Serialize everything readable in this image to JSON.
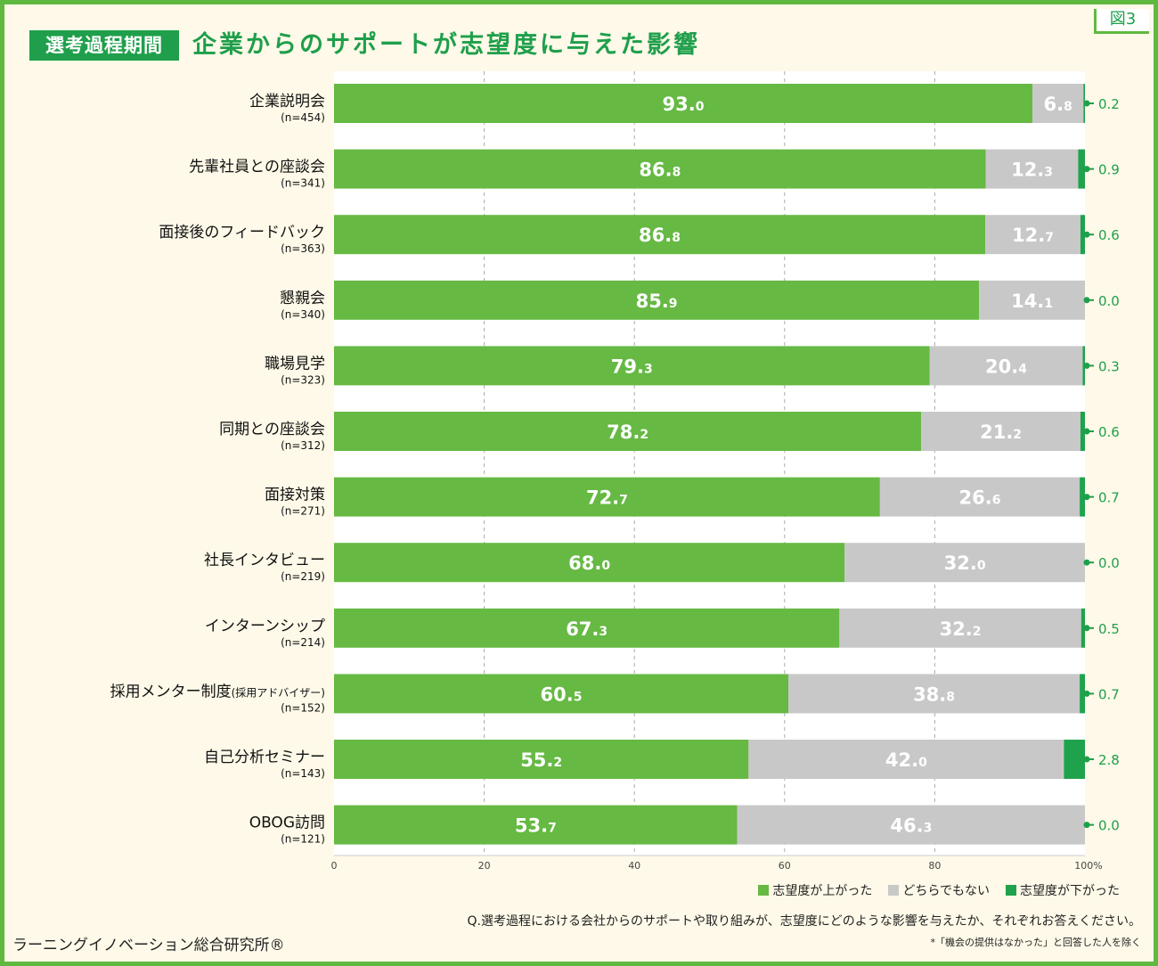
{
  "header": {
    "badge": "選考過程期間",
    "title": "企業からのサポートが志望度に与えた影響",
    "figure_no": "図3"
  },
  "colors": {
    "up": "#66b943",
    "neutral": "#c8c8c8",
    "down": "#1fa24c",
    "label_green": "#1f9f4b"
  },
  "chart_data": {
    "type": "bar",
    "stacked": true,
    "orientation": "horizontal",
    "xlim": [
      0,
      100
    ],
    "xticks": [
      "0",
      "20",
      "40",
      "60",
      "80",
      "100%"
    ],
    "grid": true,
    "legend_position": "bottom-right",
    "categories": [
      {
        "label": "企業説明会",
        "n": "(n=454)"
      },
      {
        "label": "先輩社員との座談会",
        "n": "(n=341)"
      },
      {
        "label": "面接後のフィードバック",
        "n": "(n=363)"
      },
      {
        "label": "懇親会",
        "n": "(n=340)"
      },
      {
        "label": "職場見学",
        "n": "(n=323)"
      },
      {
        "label": "同期との座談会",
        "n": "(n=312)"
      },
      {
        "label": "面接対策",
        "n": "(n=271)"
      },
      {
        "label": "社長インタビュー",
        "n": "(n=219)"
      },
      {
        "label": "インターンシップ",
        "n": "(n=214)"
      },
      {
        "label": "採用メンター制度",
        "label_note": "(採用アドバイザー)",
        "n": "(n=152)"
      },
      {
        "label": "自己分析セミナー",
        "n": "(n=143)"
      },
      {
        "label": "OBOG訪問",
        "n": "(n=121)"
      }
    ],
    "series": [
      {
        "name": "志望度が上がった",
        "values": [
          93.0,
          86.8,
          86.8,
          85.9,
          79.3,
          78.2,
          72.7,
          68.0,
          67.3,
          60.5,
          55.2,
          53.7
        ]
      },
      {
        "name": "どちらでもない",
        "values": [
          6.8,
          12.3,
          12.7,
          14.1,
          20.4,
          21.2,
          26.6,
          32.0,
          32.2,
          38.8,
          42.0,
          46.3
        ]
      },
      {
        "name": "志望度が下がった",
        "values": [
          0.2,
          0.9,
          0.6,
          0.0,
          0.3,
          0.6,
          0.7,
          0.0,
          0.5,
          0.7,
          2.8,
          0.0
        ]
      }
    ]
  },
  "footer": {
    "question": "Q.選考過程における会社からのサポートや取り組みが、志望度にどのような影響を与えたか、それぞれお答えください。",
    "note": "*「機会の提供はなかった」と回答した人を除く",
    "source": "ラーニングイノベーション総合研究所®"
  }
}
